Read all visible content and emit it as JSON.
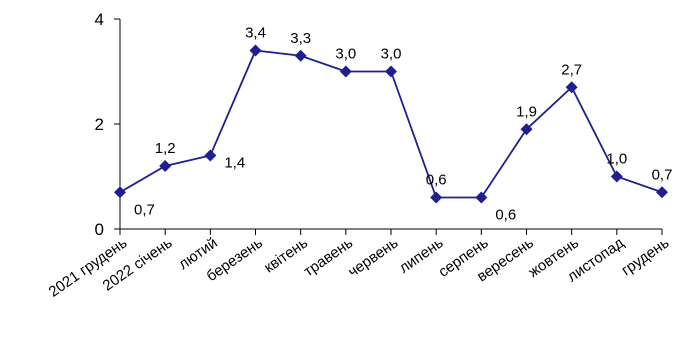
{
  "chart_data": {
    "type": "line",
    "title": "",
    "xlabel": "",
    "ylabel": "",
    "ylim": [
      0,
      4
    ],
    "yticks": [
      "0",
      "2",
      "4"
    ],
    "grid": false,
    "legend": "none",
    "categories": [
      "2021 грудень",
      "2022 січень",
      "лютий",
      "березень",
      "квітень",
      "травень",
      "червень",
      "липень",
      "серпень",
      "вересень",
      "жовтень",
      "листопад",
      "грудень"
    ],
    "series": [
      {
        "values": [
          0.7,
          1.2,
          1.4,
          3.4,
          3.3,
          3.0,
          3.0,
          0.6,
          0.6,
          1.9,
          2.7,
          1.0,
          0.7
        ],
        "labels": [
          "0,7",
          "1,2",
          "1,4",
          "3,4",
          "3,3",
          "3,0",
          "3,0",
          "0,6",
          "0,6",
          "1,9",
          "2,7",
          "1,0",
          "0,7"
        ],
        "color": "#1f1f8f"
      }
    ]
  }
}
